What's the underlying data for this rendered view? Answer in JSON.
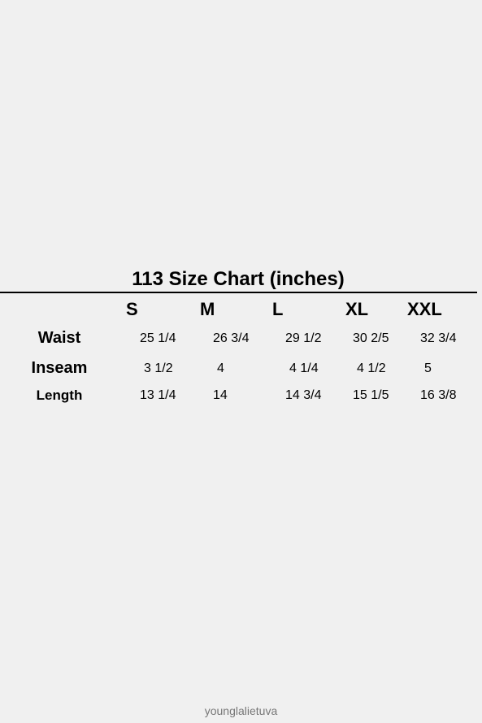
{
  "size_chart": {
    "title": "113 Size Chart (inches)",
    "sizes": [
      "S",
      "M",
      "L",
      "XL",
      "XXL"
    ],
    "rows": [
      {
        "label": "Waist",
        "values": [
          "25 1/4",
          "26 3/4",
          "29 1/2",
          "30 2/5",
          "32 3/4"
        ]
      },
      {
        "label": "Inseam",
        "values": [
          "3 1/2",
          "4",
          "4 1/4",
          "4 1/2",
          "5"
        ]
      },
      {
        "label": "Length",
        "values": [
          "13 1/4",
          "14",
          "14 3/4",
          "15 1/5",
          "16 3/8"
        ]
      }
    ]
  },
  "footer": {
    "watermark": "younglalietuva"
  }
}
